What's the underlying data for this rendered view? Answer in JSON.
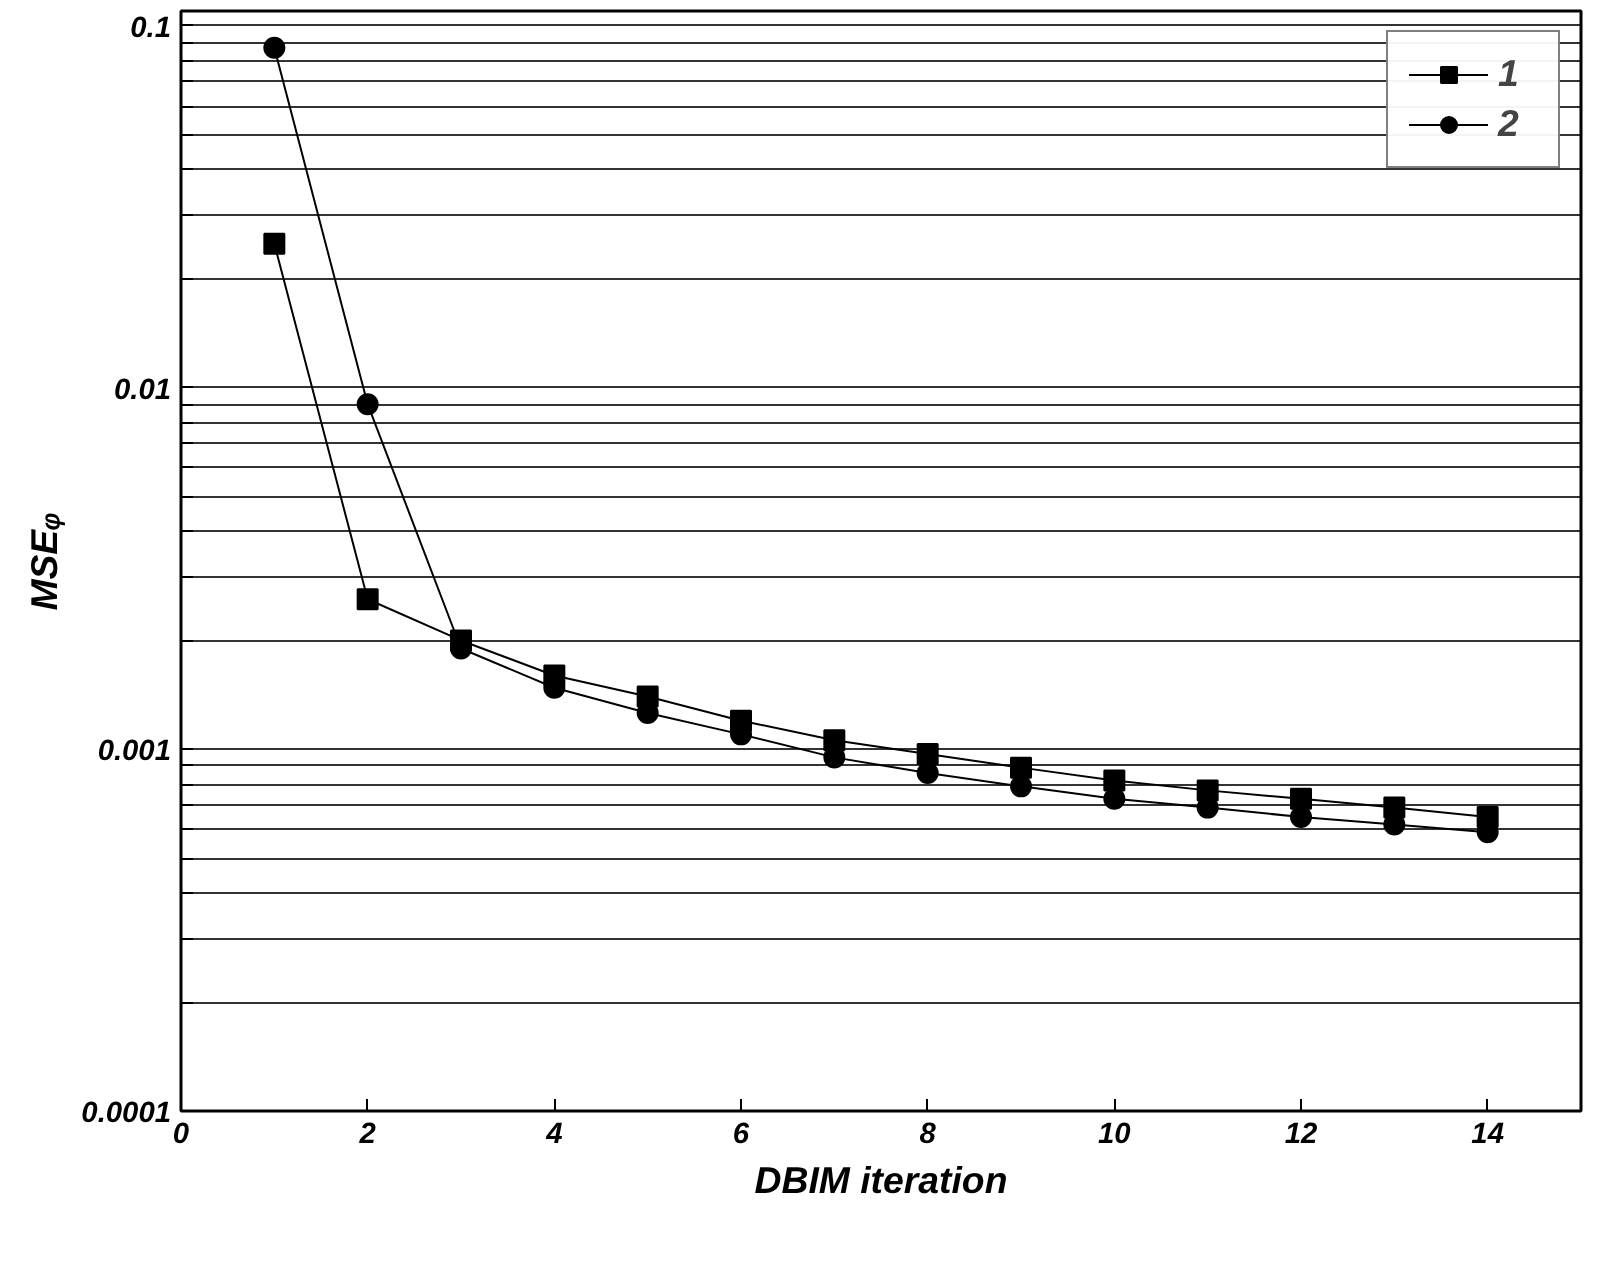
{
  "chart_data": {
    "type": "line",
    "xlabel": "DBIM iteration",
    "ylabel": "MSEᵩ",
    "log": "y",
    "grid": "y",
    "legend": "top right",
    "line_style": "solid",
    "x": [
      1,
      2,
      3,
      4,
      5,
      6,
      7,
      8,
      9,
      10,
      11,
      12,
      13,
      14
    ],
    "xlim": [
      0,
      15
    ],
    "xticks": [
      0,
      2,
      4,
      6,
      8,
      10,
      12,
      14
    ],
    "ylim": [
      0.0001,
      0.11
    ],
    "yticks": [
      0.0001,
      {
        "value": 0.0002,
        "label": null
      },
      {
        "value": 0.0003,
        "label": null
      },
      {
        "value": 0.0004,
        "label": null
      },
      {
        "value": 0.0005,
        "label": null
      },
      {
        "value": 0.0006,
        "label": null
      },
      {
        "value": 0.0007,
        "label": null
      },
      {
        "value": 0.0008,
        "label": null
      },
      {
        "value": 0.0009,
        "label": null
      },
      0.001,
      {
        "value": 0.002,
        "label": null
      },
      {
        "value": 0.003,
        "label": null
      },
      {
        "value": 0.004,
        "label": null
      },
      {
        "value": 0.005,
        "label": null
      },
      {
        "value": 0.006,
        "label": null
      },
      {
        "value": 0.007,
        "label": null
      },
      {
        "value": 0.008,
        "label": null
      },
      {
        "value": 0.009,
        "label": null
      },
      0.01,
      {
        "value": 0.02,
        "label": null
      },
      {
        "value": 0.03,
        "label": null
      },
      {
        "value": 0.04,
        "label": null
      },
      {
        "value": 0.05,
        "label": null
      },
      {
        "value": 0.06,
        "label": null
      },
      {
        "value": 0.07,
        "label": null
      },
      {
        "value": 0.08,
        "label": null
      },
      {
        "value": 0.09,
        "label": null
      },
      0.1
    ],
    "series": [
      {
        "name": "1",
        "color": "#000000",
        "marker": "square",
        "values": [
          0.025,
          0.0026,
          0.002,
          0.0016,
          0.0014,
          0.0012,
          0.00106,
          0.00097,
          0.00089,
          0.00082,
          0.00077,
          0.00073,
          0.00069,
          0.00065
        ]
      },
      {
        "name": "2",
        "color": "#000000",
        "marker": "circle",
        "values": [
          0.087,
          0.009,
          0.0019,
          0.00148,
          0.00126,
          0.0011,
          0.00095,
          0.00086,
          0.00079,
          0.00073,
          0.00069,
          0.00065,
          0.00062,
          0.00059
        ]
      }
    ]
  }
}
